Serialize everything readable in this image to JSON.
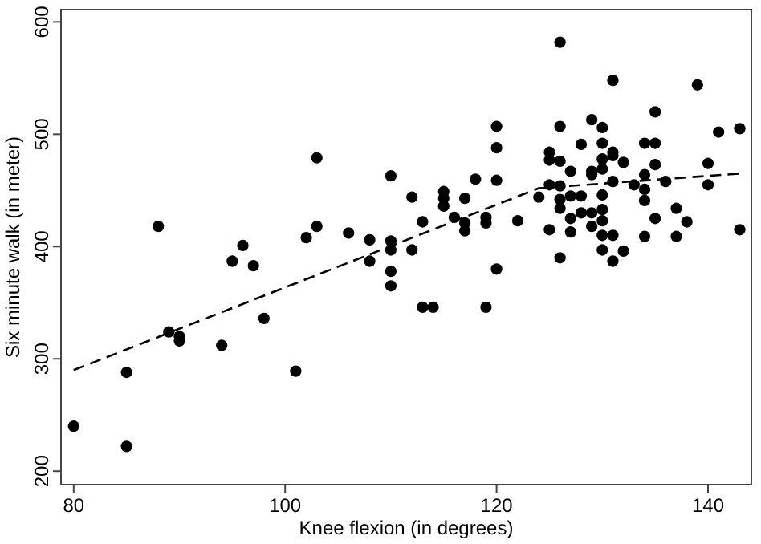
{
  "chart_data": {
    "type": "scatter",
    "xlabel": "Knee flexion (in degrees)",
    "ylabel": "Six minute walk (in meter)",
    "xlim": [
      78.8,
      144.1
    ],
    "ylim": [
      188,
      611
    ],
    "xticks": [
      80,
      100,
      120,
      140
    ],
    "yticks": [
      200,
      300,
      400,
      500,
      600
    ],
    "grid": false,
    "series": [
      {
        "color": "#000000",
        "marker": "circle",
        "x": [
          80,
          85,
          85,
          88,
          89,
          90,
          90,
          94,
          95,
          96,
          97,
          98,
          101,
          102,
          103,
          103,
          106,
          108,
          108,
          126,
          131,
          139,
          120,
          120,
          120,
          126,
          129,
          130,
          135,
          141,
          143,
          110,
          125,
          125,
          126,
          128,
          130,
          131,
          131,
          130,
          132,
          135,
          134,
          135,
          140,
          127,
          129,
          129,
          130,
          134,
          118,
          112,
          115,
          115,
          115,
          117,
          125,
          126,
          131,
          133,
          136,
          140,
          134,
          134,
          124,
          126,
          127,
          128,
          130,
          126,
          129,
          130,
          128,
          127,
          130,
          113,
          116,
          117,
          117,
          119,
          119,
          122,
          110,
          110,
          112,
          125,
          127,
          129,
          130,
          131,
          135,
          137,
          138,
          134,
          137,
          143,
          130,
          132,
          131,
          126,
          120,
          110,
          110,
          113,
          114,
          119
        ],
        "values": [
          240,
          288,
          222,
          418,
          324,
          320,
          316,
          312,
          387,
          401,
          383,
          336,
          289,
          408,
          479,
          418,
          412,
          406,
          387,
          582,
          548,
          544,
          507,
          488,
          459,
          507,
          513,
          506,
          520,
          502,
          505,
          463,
          484,
          477,
          476,
          491,
          492,
          484,
          481,
          478,
          475,
          492,
          492,
          473,
          474,
          467,
          467,
          464,
          469,
          464,
          460,
          444,
          449,
          443,
          436,
          443,
          455,
          454,
          458,
          455,
          458,
          455,
          451,
          441,
          444,
          442,
          445,
          445,
          446,
          434,
          430,
          433,
          430,
          425,
          423,
          422,
          426,
          421,
          414,
          426,
          421,
          423,
          405,
          397,
          397,
          415,
          413,
          418,
          410,
          410,
          425,
          434,
          422,
          409,
          409,
          415,
          397,
          396,
          387,
          390,
          380,
          378,
          365,
          346,
          346,
          346
        ]
      },
      {
        "type": "line",
        "color": "#000000",
        "marker": "none",
        "line_style": "dashed",
        "x": [
          80,
          124,
          143
        ],
        "values": [
          290,
          452,
          465
        ]
      }
    ]
  }
}
